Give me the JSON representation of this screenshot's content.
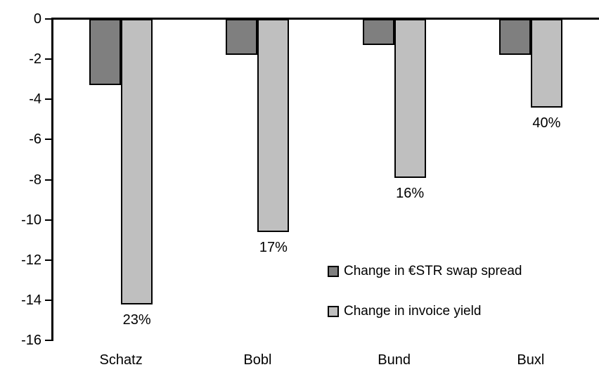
{
  "chart_data": {
    "type": "bar",
    "title": "",
    "xlabel": "",
    "ylabel": "",
    "categories": [
      "Schatz",
      "Bobl",
      "Bund",
      "Buxl"
    ],
    "series": [
      {
        "name": "Change in €STR swap spread",
        "color": "#7f7f7f",
        "values": [
          -3.3,
          -1.8,
          -1.3,
          -1.8
        ]
      },
      {
        "name": "Change in invoice yield",
        "color": "#bfbfbf",
        "values": [
          -14.2,
          -10.6,
          -7.9,
          -4.4
        ],
        "data_labels": [
          "23%",
          "17%",
          "16%",
          "40%"
        ]
      }
    ],
    "ylim": [
      -16,
      0
    ],
    "y_ticks": [
      0,
      -2,
      -4,
      -6,
      -8,
      -10,
      -12,
      -14,
      -16
    ],
    "grid": false,
    "legend_position": "inside-right-lower",
    "bar_border_color": "#000000",
    "axis_color": "#000000",
    "background": "#ffffff"
  },
  "legend": {
    "items": [
      {
        "label": "Change in €STR swap spread",
        "color": "#7f7f7f"
      },
      {
        "label": "Change in invoice yield",
        "color": "#bfbfbf"
      }
    ]
  }
}
